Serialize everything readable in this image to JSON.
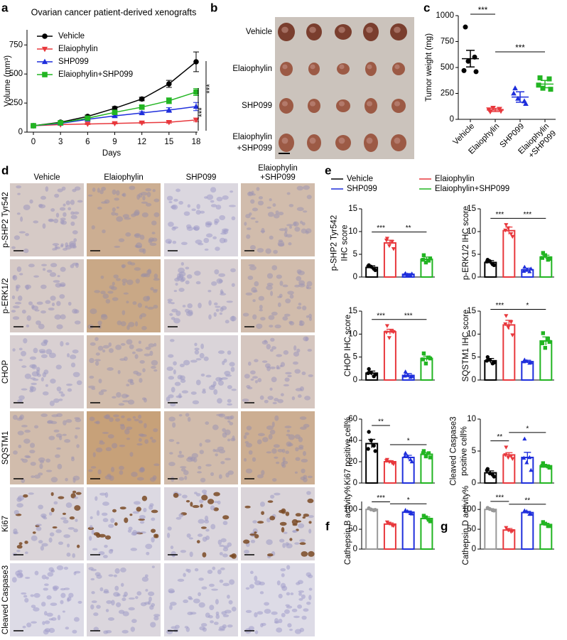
{
  "chart_data": [
    {
      "type": "line",
      "label": "a",
      "title": "Ovarian cancer patient-derived xenografts",
      "xlabel": "Days",
      "ylabel": "Volume (mm³)",
      "x": [
        0,
        3,
        6,
        9,
        12,
        15,
        18
      ],
      "xlim": [
        0,
        18
      ],
      "xticks": [
        0,
        3,
        6,
        9,
        12,
        15,
        18
      ],
      "ylim": [
        0,
        880
      ],
      "yticks": [
        0,
        250,
        500,
        750
      ],
      "series": [
        {
          "name": "Vehicle",
          "color": "#000000",
          "values": [
            55,
            85,
            135,
            205,
            285,
            415,
            605
          ],
          "errors": [
            5,
            8,
            12,
            15,
            15,
            30,
            85
          ]
        },
        {
          "name": "Elaiophylin",
          "color": "#e8383d",
          "values": [
            55,
            65,
            70,
            75,
            80,
            85,
            105
          ],
          "errors": [
            3,
            4,
            5,
            5,
            6,
            8,
            15
          ]
        },
        {
          "name": "SHP099",
          "color": "#1f2fdc",
          "values": [
            55,
            75,
            110,
            140,
            165,
            190,
            220
          ],
          "errors": [
            3,
            5,
            8,
            10,
            12,
            20,
            35
          ]
        },
        {
          "name": "Elaiophylin+SHP099",
          "color": "#22b522",
          "values": [
            55,
            80,
            120,
            170,
            215,
            270,
            345
          ],
          "errors": [
            3,
            5,
            10,
            12,
            15,
            25,
            30
          ]
        }
      ],
      "annotations": [
        "***",
        "***"
      ]
    },
    {
      "type": "dot",
      "label": "c",
      "ylabel": "Tumor weight (mg)",
      "categories": [
        "Vehicle",
        "Elaiophylin",
        "SHP099",
        [
          "Elaiophylin",
          "+SHP099"
        ]
      ],
      "colors": [
        "#000000",
        "#e8383d",
        "#1f2fdc",
        "#22b522"
      ],
      "ylim": [
        0,
        1000
      ],
      "yticks": [
        0,
        250,
        500,
        750,
        1000
      ],
      "points": [
        [
          890,
          600,
          560,
          460,
          470
        ],
        [
          75,
          100,
          110,
          80,
          95
        ],
        [
          300,
          175,
          200,
          150,
          250
        ],
        [
          400,
          390,
          300,
          290,
          330
        ]
      ],
      "means": [
        585,
        90,
        215,
        340
      ],
      "errors": [
        80,
        15,
        50,
        35
      ],
      "annotations": [
        "***",
        "***"
      ]
    },
    {
      "type": "bar",
      "ylabel": [
        "p-SHP2 Tyr542",
        "IHC score"
      ],
      "ylim": [
        0,
        15
      ],
      "yticks": [
        0,
        5,
        10,
        15
      ],
      "colors": [
        "#000000",
        "#e8383d",
        "#1f2fdc",
        "#22b522"
      ],
      "values": [
        2.1,
        7.5,
        0.6,
        3.9
      ],
      "errors": [
        0.35,
        0.6,
        0.15,
        0.5
      ],
      "points": [
        [
          2.6,
          1.8,
          2.3,
          1.5,
          2.4
        ],
        [
          8.5,
          7.8,
          6.9,
          6.2,
          8.1
        ],
        [
          0.8,
          0.4,
          0.5,
          0.7,
          0.6
        ],
        [
          4.8,
          3.6,
          3.2,
          4.1,
          3.8
        ]
      ],
      "annotations": [
        "***",
        "**"
      ]
    },
    {
      "type": "bar",
      "ylabel": [
        "p-ERK1/2 IHC score"
      ],
      "ylim": [
        0,
        15
      ],
      "yticks": [
        0,
        5,
        10,
        15
      ],
      "colors": [
        "#000000",
        "#e8383d",
        "#1f2fdc",
        "#22b522"
      ],
      "values": [
        3.2,
        10.2,
        1.6,
        4.4
      ],
      "errors": [
        0.4,
        0.8,
        0.35,
        0.4
      ],
      "points": [
        [
          3.8,
          2.8,
          3.5,
          2.6,
          3.4
        ],
        [
          11.5,
          9.5,
          10.8,
          8.9,
          10.3
        ],
        [
          2.2,
          1.2,
          1.5,
          1.8,
          1.3
        ],
        [
          5.3,
          3.8,
          4.8,
          4.0,
          4.2
        ]
      ],
      "annotations": [
        "***",
        "***"
      ]
    },
    {
      "type": "bar",
      "ylabel": [
        "CHOP IHC score"
      ],
      "ylim": [
        0,
        15
      ],
      "yticks": [
        0,
        5,
        10,
        15
      ],
      "colors": [
        "#000000",
        "#e8383d",
        "#1f2fdc",
        "#22b522"
      ],
      "values": [
        1.5,
        10.5,
        1.0,
        4.7
      ],
      "errors": [
        0.45,
        0.55,
        0.4,
        0.5
      ],
      "points": [
        [
          2.4,
          0.8,
          1.6,
          1.2,
          1.5
        ],
        [
          11.8,
          10.6,
          9.2,
          10.5,
          10.4
        ],
        [
          1.8,
          0.6,
          1.0,
          0.8,
          0.9
        ],
        [
          5.8,
          4.9,
          3.6,
          4.7,
          4.5
        ]
      ],
      "annotations": [
        "***",
        "***"
      ]
    },
    {
      "type": "bar",
      "ylabel": [
        "SQSTM1 IHC score"
      ],
      "ylim": [
        0,
        15
      ],
      "yticks": [
        0,
        5,
        10,
        15
      ],
      "colors": [
        "#000000",
        "#e8383d",
        "#1f2fdc",
        "#22b522"
      ],
      "values": [
        4.2,
        12.0,
        4.0,
        8.5
      ],
      "errors": [
        0.5,
        1.0,
        0.3,
        0.9
      ],
      "points": [
        [
          5.0,
          3.6,
          4.4,
          3.8,
          4.2
        ],
        [
          14.0,
          12.6,
          11.5,
          9.8,
          12.2
        ],
        [
          4.4,
          3.7,
          4.1,
          3.8,
          4.0
        ],
        [
          10.2,
          9.0,
          7.0,
          8.3,
          8.0
        ]
      ],
      "annotations": [
        "***",
        "*"
      ]
    },
    {
      "type": "bar",
      "ylabel": [
        "Ki67 positive cell%"
      ],
      "ylim": [
        0,
        60
      ],
      "yticks": [
        0,
        20,
        40,
        60
      ],
      "colors": [
        "#000000",
        "#e8383d",
        "#1f2fdc",
        "#22b522"
      ],
      "values": [
        37,
        20,
        24,
        27
      ],
      "errors": [
        4,
        1,
        2,
        1.5
      ],
      "points": [
        [
          48,
          35,
          40,
          30,
          32
        ],
        [
          22,
          19,
          20,
          18,
          21
        ],
        [
          28,
          22,
          25,
          20,
          25
        ],
        [
          30,
          28,
          25,
          24,
          28
        ]
      ],
      "annotations": [
        "**",
        "*"
      ]
    },
    {
      "type": "bar",
      "ylabel": [
        "Cleaved Caspase3",
        "positive cell%"
      ],
      "ylim": [
        0,
        10
      ],
      "yticks": [
        0,
        5,
        10
      ],
      "colors": [
        "#000000",
        "#e8383d",
        "#1f2fdc",
        "#22b522"
      ],
      "values": [
        1.6,
        4.4,
        4.0,
        2.7
      ],
      "errors": [
        0.3,
        0.35,
        0.8,
        0.15
      ],
      "points": [
        [
          2.2,
          1.3,
          1.5,
          1.0,
          2.0
        ],
        [
          5.6,
          4.2,
          4.0,
          3.8,
          4.4
        ],
        [
          6.9,
          4.0,
          3.2,
          2.0,
          3.9
        ],
        [
          3.1,
          2.6,
          2.7,
          2.4,
          2.7
        ]
      ],
      "annotations": [
        "**",
        "*"
      ]
    },
    {
      "type": "bar",
      "label": "f",
      "ylabel": [
        "Cathepsin B activity%"
      ],
      "ylim": [
        0,
        120
      ],
      "yticks": [
        0,
        50,
        100
      ],
      "colors": [
        "#999999",
        "#e8383d",
        "#1f2fdc",
        "#22b522"
      ],
      "values": [
        100,
        63,
        93,
        77
      ],
      "errors": [
        1.5,
        3,
        3,
        4
      ],
      "points": [
        [
          103,
          98,
          100,
          99
        ],
        [
          68,
          60,
          65,
          59
        ],
        [
          98,
          90,
          95,
          89
        ],
        [
          84,
          74,
          80,
          70
        ]
      ],
      "annotations": [
        "***",
        "*"
      ]
    },
    {
      "type": "bar",
      "label": "g",
      "ylabel": [
        "Cathepsin D activity%"
      ],
      "ylim": [
        0,
        120
      ],
      "yticks": [
        0,
        50,
        100
      ],
      "colors": [
        "#999999",
        "#e8383d",
        "#1f2fdc",
        "#22b522"
      ],
      "values": [
        100,
        48,
        92,
        62
      ],
      "errors": [
        2,
        4,
        3,
        3
      ],
      "points": [
        [
          104,
          98,
          101,
          97
        ],
        [
          54,
          44,
          48,
          46
        ],
        [
          97,
          88,
          95,
          88
        ],
        [
          68,
          58,
          64,
          58
        ]
      ],
      "annotations": [
        "***",
        "**"
      ]
    }
  ],
  "panel_b": {
    "label": "b",
    "rows": [
      [
        "Vehicle"
      ],
      [
        "Elaiophylin"
      ],
      [
        "SHP099"
      ],
      [
        "Elaiophylin",
        "+SHP099"
      ]
    ]
  },
  "panel_d": {
    "label": "d",
    "columns": [
      [
        "Vehicle"
      ],
      [
        "Elaiophylin"
      ],
      [
        "SHP099"
      ],
      [
        "Elaiophylin",
        "+SHP099"
      ]
    ],
    "rows": [
      "p-SHP2 Tyr542",
      "p-ERK1/2",
      "CHOP",
      "SQSTM1",
      "Ki67",
      "Cleaved Caspase3"
    ]
  },
  "panel_e": {
    "label": "e",
    "legend": [
      {
        "name": "Vehicle",
        "color": "#000000"
      },
      {
        "name": "Elaiophylin",
        "color": "#e8383d"
      },
      {
        "name": "SHP099",
        "color": "#1f2fdc"
      },
      {
        "name": "Elaiophylin+SHP099",
        "color": "#22b522"
      }
    ]
  }
}
